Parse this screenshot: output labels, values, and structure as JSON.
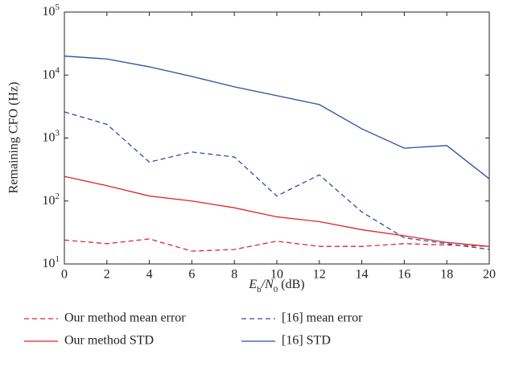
{
  "chart_data": {
    "type": "line",
    "x_label": "E_b/N_0 (dB)",
    "y_label": "Remaining CFO (Hz)",
    "y_scale": "log",
    "xlim": [
      0,
      20
    ],
    "xticks": [
      0,
      2,
      4,
      6,
      8,
      10,
      12,
      14,
      16,
      18,
      20
    ],
    "ylim": [
      10,
      100000
    ],
    "yticks": [
      {
        "value": 10,
        "label": "10^1"
      },
      {
        "value": 100,
        "label": "10^2"
      },
      {
        "value": 1000,
        "label": "10^3"
      },
      {
        "value": 10000,
        "label": "10^4"
      },
      {
        "value": 100000,
        "label": "10^5"
      }
    ],
    "x": [
      0,
      2,
      4,
      6,
      8,
      10,
      12,
      14,
      16,
      18,
      20
    ],
    "series": [
      {
        "name": "Our method mean error",
        "color": "#e0262b",
        "dash": true,
        "values": [
          24,
          21,
          25,
          16,
          17,
          23,
          19,
          19,
          21,
          20,
          19
        ]
      },
      {
        "name": "[16] mean error",
        "color": "#2c4f9e",
        "dash": true,
        "values": [
          2600,
          1650,
          415,
          600,
          500,
          120,
          260,
          67,
          26,
          21,
          17
        ]
      },
      {
        "name": "Our method STD",
        "color": "#e0262b",
        "dash": false,
        "values": [
          245,
          175,
          120,
          100,
          78,
          56,
          47,
          35,
          28,
          22,
          19
        ]
      },
      {
        "name": "[16] STD",
        "color": "#2c4f9e",
        "dash": false,
        "values": [
          20000,
          18000,
          13500,
          9500,
          6500,
          4700,
          3400,
          1400,
          690,
          760,
          225
        ]
      }
    ]
  }
}
